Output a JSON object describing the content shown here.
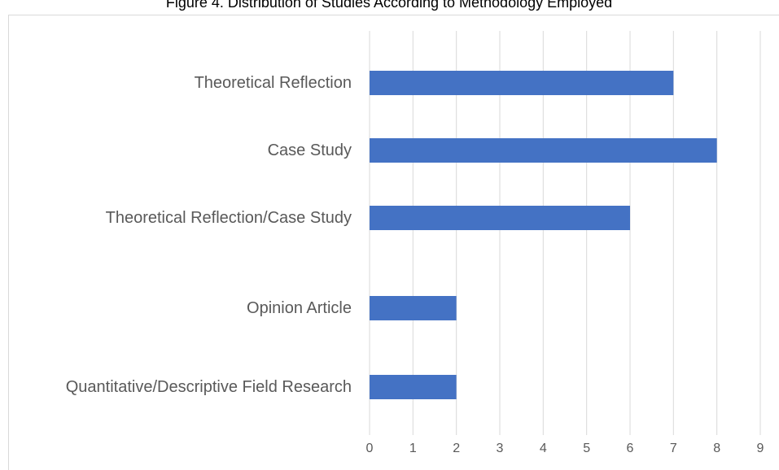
{
  "chart_data": {
    "type": "bar",
    "orientation": "horizontal",
    "title": "Figure 4. Distribution of Studies According to Methodology Employed",
    "categories": [
      "Theoretical Reflection",
      "Case Study",
      "Theoretical Reflection/Case Study",
      "Opinion Article",
      "Quantitative/Descriptive Field Research"
    ],
    "values": [
      7,
      8,
      6,
      2,
      2
    ],
    "color": "#4472c4",
    "xlim": [
      0,
      9
    ],
    "xticks": [
      0,
      1,
      2,
      3,
      4,
      5,
      6,
      7,
      8,
      9
    ],
    "grid": true
  }
}
